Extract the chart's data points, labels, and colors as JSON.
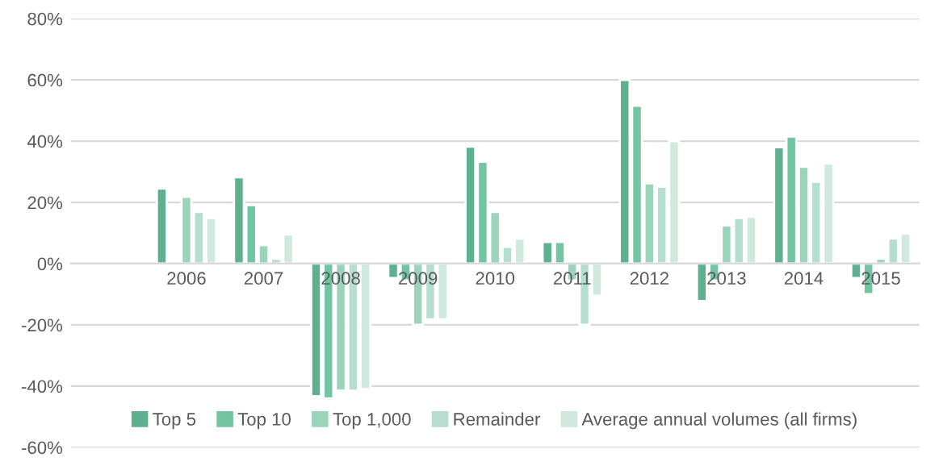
{
  "chart_data": {
    "type": "bar",
    "categories": [
      null,
      "2006",
      "2007",
      "2008",
      "2009",
      "2010",
      "2011",
      "2012",
      "2013",
      "2014",
      "2015"
    ],
    "series": [
      {
        "name": "Top 5",
        "color": "#5fb08f",
        "values": [
          null,
          24.5,
          28.2,
          -43.3,
          -4.7,
          38.2,
          7.1,
          60,
          -12.2,
          38,
          -4.7
        ]
      },
      {
        "name": "Top 10",
        "color": "#72c4a2",
        "values": [
          null,
          null,
          19.1,
          -44,
          -5.5,
          33.3,
          7.1,
          51.6,
          -5.5,
          41.5,
          -10
        ]
      },
      {
        "name": "Top 1,000",
        "color": "#9bd3bb",
        "values": [
          null,
          21.8,
          6,
          -41.5,
          -20,
          16.9,
          -5.5,
          26.2,
          12.5,
          31.6,
          1.6
        ]
      },
      {
        "name": "Remainder",
        "color": "#b5ded0",
        "values": [
          null,
          16.9,
          1.6,
          -41.5,
          -18.2,
          5.5,
          -20,
          25.1,
          14.9,
          26.7,
          8.2
        ]
      },
      {
        "name": "Average annual volumes (all firms)",
        "color": "#cfe9df",
        "values": [
          null,
          14.9,
          9.5,
          -41,
          -18.2,
          8.2,
          -10.5,
          40,
          15.3,
          32.7,
          9.8
        ]
      }
    ],
    "ylim": [
      -60,
      80
    ],
    "yticks": [
      {
        "value": -60,
        "label": "-60%"
      },
      {
        "value": -40,
        "label": "-40%"
      },
      {
        "value": -20,
        "label": "-20%"
      },
      {
        "value": 0,
        "label": "0%"
      },
      {
        "value": 20,
        "label": "20%"
      },
      {
        "value": 40,
        "label": "40%"
      },
      {
        "value": 60,
        "label": "60%"
      },
      {
        "value": 80,
        "label": "80%"
      }
    ],
    "grid": "y",
    "legend": "bottom"
  }
}
